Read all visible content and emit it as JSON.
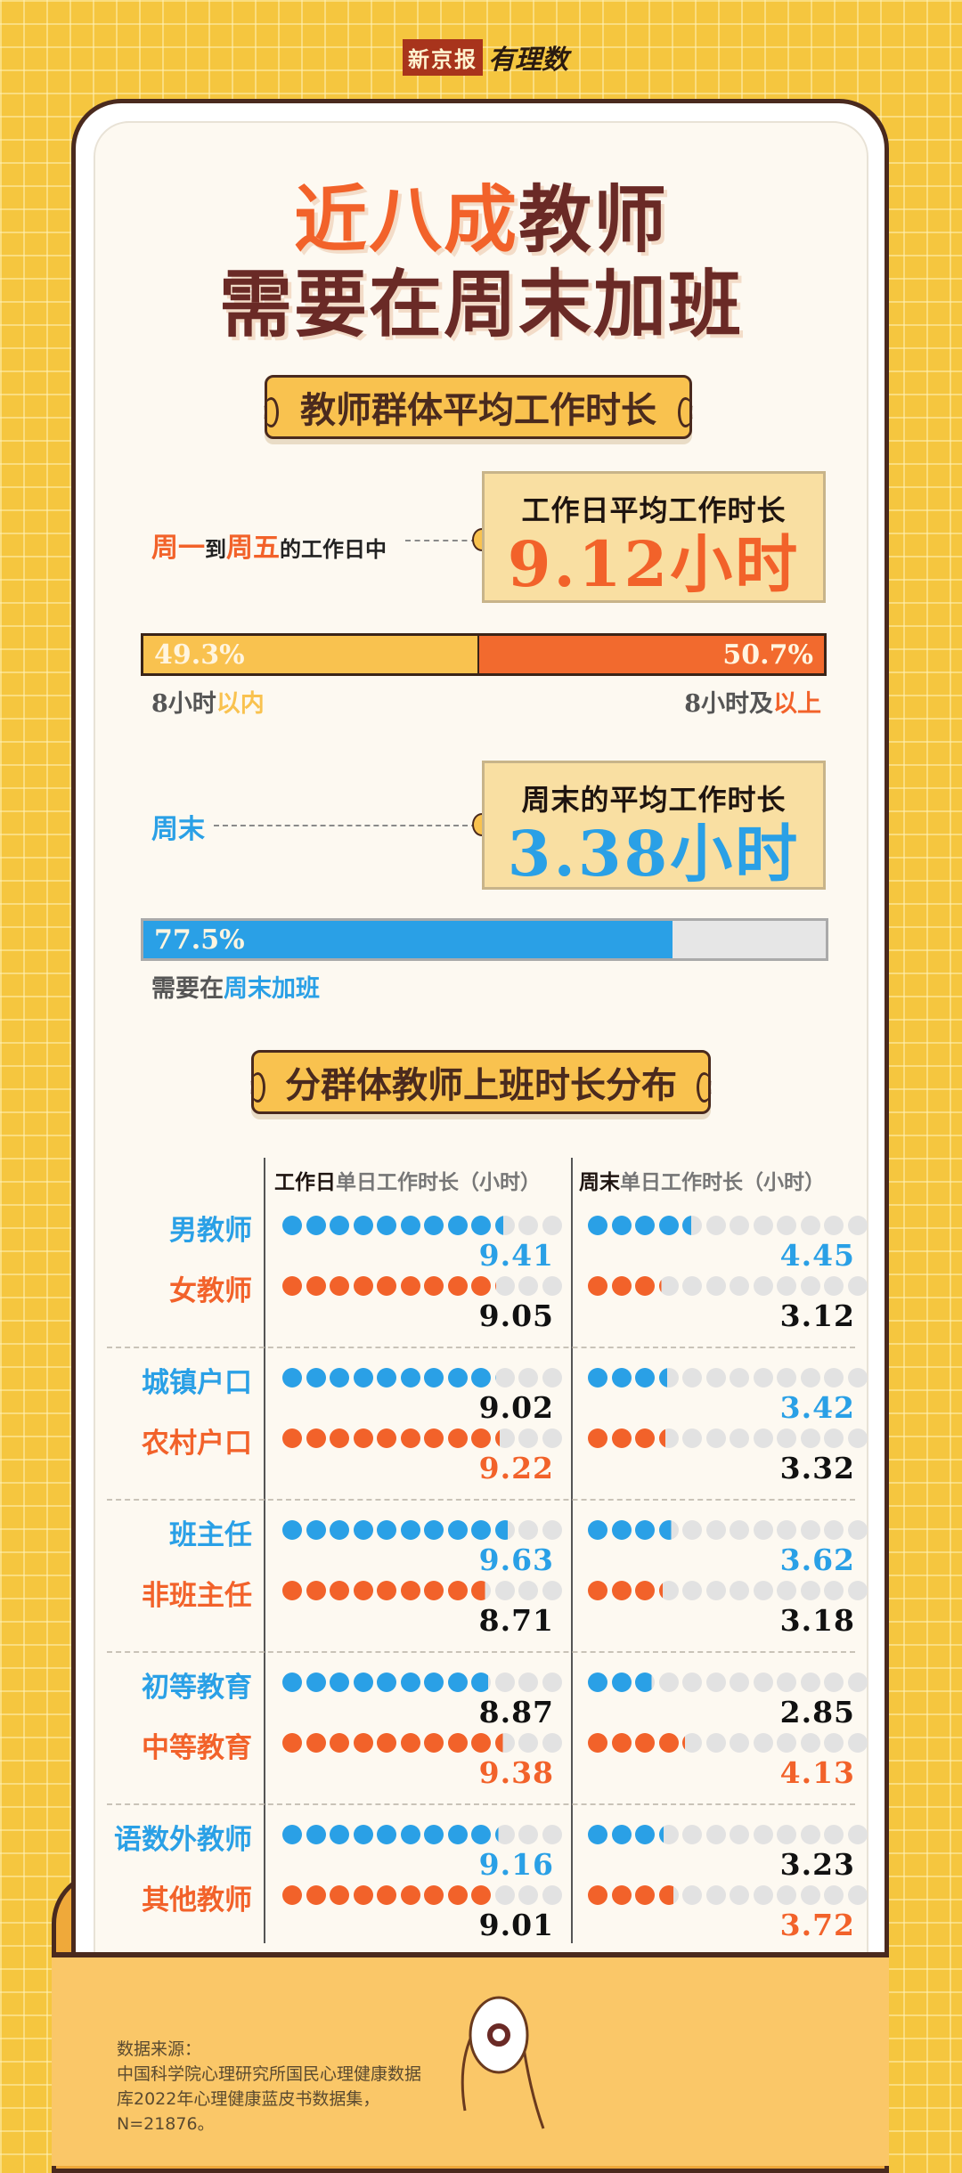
{
  "logo": {
    "brand": "新京报",
    "column": "有理数"
  },
  "title": {
    "line1_highlight": "近八成",
    "line1_rest": "教师",
    "line2": "需要在周末加班"
  },
  "section1": {
    "heading": "教师群体平均工作时长"
  },
  "weekday": {
    "lead": [
      {
        "t": "周一",
        "c": "orange"
      },
      {
        "t": "到",
        "c": "dark"
      },
      {
        "t": "周五",
        "c": "orange"
      },
      {
        "t": "的工作日中",
        "c": "dark"
      }
    ],
    "box_title": "工作日平均工作时长",
    "box_value": "9.12小时",
    "bar": {
      "left_pct": 49.3,
      "left_label": "49.3%",
      "right_pct": 50.7,
      "right_label": "50.7%"
    },
    "left_caption": {
      "a": "8小时",
      "b": "以内"
    },
    "right_caption": {
      "a": "8小时及",
      "b": "以上"
    }
  },
  "weekend": {
    "lead": "周末",
    "box_title": "周末的平均工作时长",
    "box_value": "3.38小时",
    "bar": {
      "pct": 77.5,
      "label": "77.5%"
    },
    "caption": {
      "a": "需要在",
      "b": "周末加班"
    }
  },
  "section2": {
    "heading": "分群体教师上班时长分布",
    "col_workday": {
      "bold": "工作日",
      "rest": "单日工作时长（小时）"
    },
    "col_weekend": {
      "bold": "周末",
      "rest": "单日工作时长（小时）"
    }
  },
  "chart_data": {
    "type": "dot-bar",
    "dots_per_row": 12,
    "unit": "小时",
    "groups": [
      [
        {
          "label": "男教师",
          "workday": "9.41",
          "weekend": "4.45"
        },
        {
          "label": "女教师",
          "workday": "9.05",
          "weekend": "3.12"
        }
      ],
      [
        {
          "label": "城镇户口",
          "workday": "9.02",
          "weekend": "3.42"
        },
        {
          "label": "农村户口",
          "workday": "9.22",
          "weekend": "3.32"
        }
      ],
      [
        {
          "label": "班主任",
          "workday": "9.63",
          "weekend": "3.62"
        },
        {
          "label": "非班主任",
          "workday": "8.71",
          "weekend": "3.18"
        }
      ],
      [
        {
          "label": "初等教育",
          "workday": "8.87",
          "weekend": "2.85"
        },
        {
          "label": "中等教育",
          "workday": "9.38",
          "weekend": "4.13"
        }
      ],
      [
        {
          "label": "语数外教师",
          "workday": "9.16",
          "weekend": "3.23"
        },
        {
          "label": "其他教师",
          "workday": "9.01",
          "weekend": "3.72"
        }
      ]
    ]
  },
  "source": {
    "heading": "数据来源：",
    "text": "中国科学院心理研究所国民心理健康数据库2022年心理健康蓝皮书数据集，N=21876。"
  },
  "colors": {
    "orange": "#f2622a",
    "blue": "#2aa0e6",
    "yellow": "#f9c24f",
    "dark": "#4a2a1e",
    "gray": "#e2e2e2",
    "background": "#f5c63f"
  }
}
